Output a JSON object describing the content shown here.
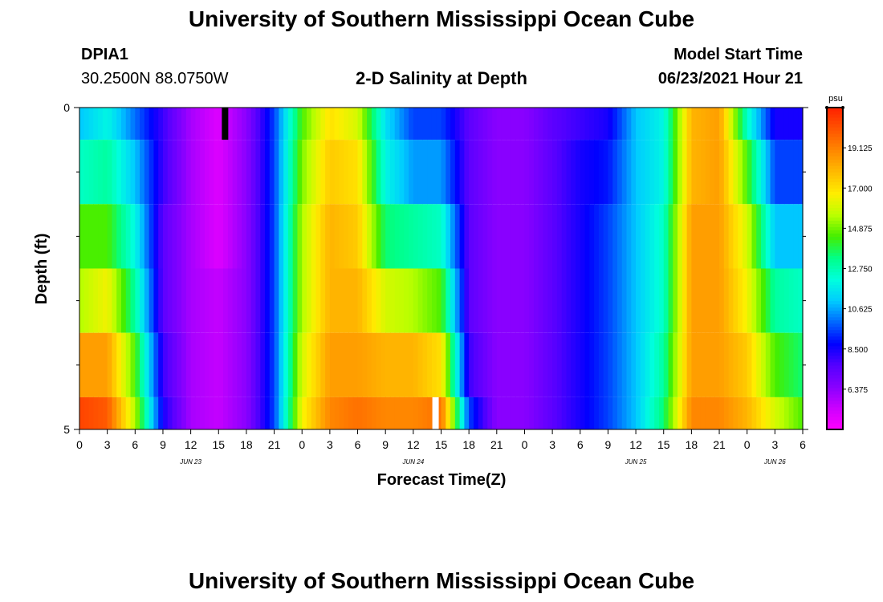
{
  "header": {
    "title": "University of Southern Mississippi Ocean Cube",
    "station_id": "DPIA1",
    "coordinates": "30.2500N  88.0750W",
    "model_start_label": "Model Start Time",
    "model_start_value": "06/23/2021 Hour 21"
  },
  "footer": {
    "title": "University of Southern Mississippi Ocean Cube"
  },
  "chart_data": {
    "type": "heatmap",
    "title": "2-D Salinity at Depth",
    "xlabel": "Forecast Time(Z)",
    "ylabel": "Depth (ft)",
    "x_hour_labels": [
      "0",
      "3",
      "6",
      "9",
      "12",
      "15",
      "18",
      "21",
      "0",
      "3",
      "6",
      "9",
      "12",
      "15",
      "18",
      "21",
      "0",
      "3",
      "6",
      "9",
      "12",
      "15",
      "18",
      "21",
      "0",
      "3",
      "6"
    ],
    "day_labels": [
      {
        "label": "JUN 23",
        "hour": 12
      },
      {
        "label": "JUN 24",
        "hour": 36
      },
      {
        "label": "JUN 25",
        "hour": 60
      },
      {
        "label": "JUN 26",
        "hour": 75
      }
    ],
    "x_range_hours": [
      0,
      78
    ],
    "y_range_ft": [
      0,
      5
    ],
    "y_tick_labels": [
      "0",
      "5"
    ],
    "depth_layers_ft": [
      0,
      1,
      2,
      3,
      4,
      5
    ],
    "colorbar": {
      "unit": "psu",
      "min": 4.25,
      "max": 21.25,
      "tick_labels": [
        "19.125",
        "17.000",
        "14.875",
        "12.750",
        "10.625",
        "8.500",
        "6.375"
      ],
      "tick_values": [
        19.125,
        17.0,
        14.875,
        12.75,
        10.625,
        8.5,
        6.375
      ],
      "colors": [
        "#ff00ff",
        "#cc00ff",
        "#8800ff",
        "#5500ff",
        "#0000ff",
        "#0066ff",
        "#00ccff",
        "#00ffdd",
        "#00ff88",
        "#44ee00",
        "#bbff00",
        "#ffee00",
        "#ffbb00",
        "#ff8800",
        "#ff5500",
        "#ff2200"
      ]
    },
    "time_hours": [
      0,
      3,
      6,
      9,
      12,
      15,
      18,
      21,
      24,
      27,
      30,
      33,
      36,
      39,
      42,
      45,
      48,
      51,
      54,
      57,
      60,
      63,
      66,
      69,
      72,
      75,
      78
    ],
    "salinity_profiles": [
      {
        "depth_range_ft": [
          0,
          0.5
        ],
        "values": [
          11.0,
          12.0,
          10.0,
          8.0,
          6.0,
          5.0,
          6.5,
          9.5,
          14.5,
          17.0,
          16.0,
          11.5,
          9.5,
          9.5,
          7.5,
          6.5,
          6.5,
          7.5,
          8.0,
          8.5,
          11.0,
          12.0,
          18.0,
          18.5,
          12.5,
          8.5,
          8.5
        ]
      },
      {
        "depth_range_ft": [
          0.5,
          1.5
        ],
        "values": [
          12.5,
          13.0,
          11.0,
          8.0,
          6.0,
          5.0,
          6.5,
          9.5,
          15.0,
          17.5,
          17.0,
          12.0,
          10.5,
          10.5,
          7.5,
          6.5,
          6.5,
          7.5,
          8.5,
          9.0,
          11.0,
          12.0,
          18.0,
          18.5,
          14.5,
          9.5,
          9.5
        ]
      },
      {
        "depth_range_ft": [
          1.5,
          2.5
        ],
        "values": [
          14.5,
          14.5,
          12.0,
          7.5,
          6.0,
          5.0,
          6.5,
          9.5,
          15.5,
          18.0,
          17.5,
          13.5,
          13.0,
          12.5,
          7.5,
          6.5,
          6.5,
          7.5,
          8.5,
          9.5,
          11.0,
          12.5,
          18.5,
          18.5,
          16.0,
          11.0,
          11.0
        ]
      },
      {
        "depth_range_ft": [
          2.5,
          3.5
        ],
        "values": [
          15.5,
          16.5,
          13.0,
          7.5,
          6.0,
          5.5,
          6.5,
          9.5,
          15.5,
          18.0,
          18.0,
          16.0,
          15.5,
          14.5,
          7.5,
          6.5,
          6.5,
          7.5,
          8.5,
          9.5,
          11.0,
          12.5,
          18.5,
          18.5,
          16.5,
          13.0,
          12.5
        ]
      },
      {
        "depth_range_ft": [
          3.5,
          4.5
        ],
        "values": [
          18.5,
          18.5,
          14.5,
          8.0,
          6.0,
          5.5,
          6.5,
          9.5,
          16.0,
          18.5,
          18.5,
          18.0,
          18.0,
          17.0,
          8.0,
          6.5,
          6.5,
          7.5,
          8.5,
          9.5,
          11.0,
          13.0,
          18.5,
          18.5,
          17.5,
          14.5,
          13.5
        ]
      },
      {
        "depth_range_ft": [
          4.5,
          5
        ],
        "values": [
          20.5,
          20.0,
          15.5,
          8.5,
          6.0,
          5.5,
          6.5,
          9.5,
          16.5,
          19.0,
          19.5,
          19.0,
          19.0,
          19.5,
          9.5,
          6.5,
          6.5,
          7.5,
          8.5,
          9.5,
          11.0,
          13.5,
          19.0,
          19.0,
          18.0,
          16.0,
          14.5
        ]
      }
    ],
    "markers": [
      {
        "color": "#000000",
        "hour": 15.7,
        "depth_range_ft": [
          0,
          0.5
        ]
      },
      {
        "color": "#ffffff",
        "hour": 38.4,
        "depth_range_ft": [
          4.5,
          5
        ]
      }
    ]
  }
}
